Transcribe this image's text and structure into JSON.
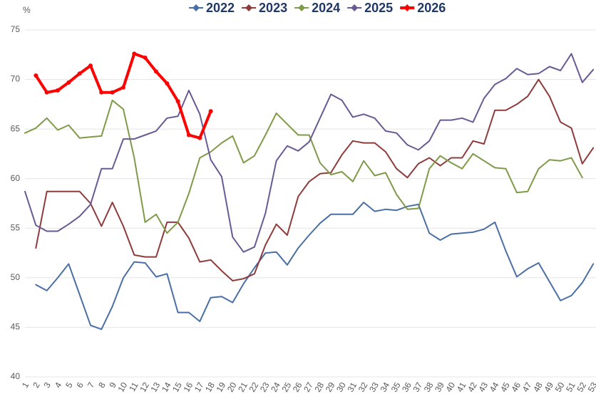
{
  "chart_data": {
    "type": "line",
    "y_unit": "%",
    "categories": [
      "1",
      "2",
      "3",
      "4",
      "5",
      "6",
      "7",
      "8",
      "9",
      "10",
      "11",
      "12",
      "13",
      "14",
      "15",
      "16",
      "17",
      "18",
      "19",
      "20",
      "21",
      "22",
      "23",
      "24",
      "25",
      "26",
      "27",
      "28",
      "29",
      "30",
      "31",
      "32",
      "33",
      "34",
      "35",
      "36",
      "37",
      "38",
      "39",
      "40",
      "41",
      "42",
      "43",
      "44",
      "45",
      "46",
      "47",
      "48",
      "49",
      "50",
      "51",
      "52",
      "53"
    ],
    "ylim": [
      40,
      75
    ],
    "yticks": [
      40,
      45,
      50,
      55,
      60,
      65,
      70,
      75
    ],
    "grid": true,
    "series": [
      {
        "name": "2022",
        "color": "#4a6fa5",
        "line_width": 2,
        "values": [
          null,
          49.3,
          48.7,
          50,
          51.4,
          48.3,
          45.2,
          44.8,
          47.1,
          50,
          51.6,
          51.5,
          50.1,
          50.4,
          46.5,
          46.5,
          45.6,
          48,
          48.1,
          47.5,
          49.4,
          51,
          52.5,
          52.6,
          51.3,
          53,
          54.3,
          55.5,
          56.4,
          56.4,
          56.4,
          57.6,
          56.7,
          56.9,
          56.8,
          57.2,
          57.4,
          54.5,
          53.8,
          54.4,
          54.5,
          54.6,
          54.9,
          55.6,
          52.7,
          50.1,
          50.9,
          51.5,
          49.6,
          47.7,
          48.2,
          49.5,
          51.4
        ]
      },
      {
        "name": "2023",
        "color": "#8e3b3b",
        "line_width": 2,
        "values": [
          null,
          53,
          58.7,
          58.7,
          58.7,
          58.7,
          57.5,
          55.2,
          57.6,
          55.2,
          52.3,
          52.1,
          52.1,
          55.6,
          55.6,
          54,
          51.6,
          51.8,
          50.7,
          49.7,
          49.9,
          50.4,
          53.3,
          55.4,
          54.3,
          58.2,
          59.7,
          60.5,
          60.6,
          62.4,
          63.8,
          63.6,
          63.6,
          62.7,
          61,
          60.1,
          61.5,
          62.1,
          61.3,
          62.1,
          62.1,
          63.8,
          63.5,
          66.9,
          66.9,
          67.5,
          68.3,
          70,
          68.3,
          65.7,
          65.1,
          61.5,
          63.1
        ]
      },
      {
        "name": "2024",
        "color": "#7f9a48",
        "line_width": 2,
        "values": [
          64.6,
          65.1,
          66.1,
          64.9,
          65.4,
          64.1,
          64.2,
          64.3,
          67.9,
          67,
          62.1,
          55.6,
          56.4,
          54.5,
          55.6,
          58.5,
          62.1,
          62.7,
          63.6,
          64.3,
          61.6,
          62.3,
          64.4,
          66.6,
          65.5,
          64.4,
          64.4,
          61.6,
          60.4,
          60.7,
          59.7,
          61.8,
          60.3,
          60.6,
          58.4,
          56.9,
          57,
          61,
          62.3,
          61.6,
          61,
          62.5,
          61.8,
          61.1,
          61,
          58.6,
          58.7,
          61,
          61.9,
          61.8,
          62.1,
          60.1,
          null
        ]
      },
      {
        "name": "2025",
        "color": "#6a5a93",
        "line_width": 2,
        "values": [
          58.7,
          55.3,
          54.7,
          54.7,
          55.4,
          56.2,
          57.4,
          61,
          61,
          64,
          64,
          64.4,
          64.8,
          66.1,
          66.3,
          68.9,
          66.5,
          61.9,
          60.2,
          54.1,
          52.6,
          53.1,
          56.5,
          61.8,
          63.3,
          62.8,
          63.7,
          66.1,
          68.5,
          67.9,
          66.2,
          66.5,
          66.1,
          64.8,
          64.6,
          63.4,
          62.9,
          63.8,
          65.9,
          65.9,
          66.1,
          65.7,
          68.1,
          69.5,
          70.1,
          71.1,
          70.5,
          70.6,
          71.3,
          70.9,
          72.6,
          69.7,
          71
        ]
      },
      {
        "name": "2026",
        "color": "#ff0000",
        "line_width": 4,
        "values": [
          null,
          70.4,
          68.7,
          68.9,
          69.7,
          70.6,
          71.4,
          68.7,
          68.7,
          69.2,
          72.6,
          72.2,
          70.8,
          69.6,
          67.8,
          64.4,
          64.1,
          66.8,
          null,
          null,
          null,
          null,
          null,
          null,
          null,
          null,
          null,
          null,
          null,
          null,
          null,
          null,
          null,
          null,
          null,
          null,
          null,
          null,
          null,
          null,
          null,
          null,
          null,
          null,
          null,
          null,
          null,
          null,
          null,
          null,
          null,
          null,
          null
        ]
      }
    ]
  }
}
